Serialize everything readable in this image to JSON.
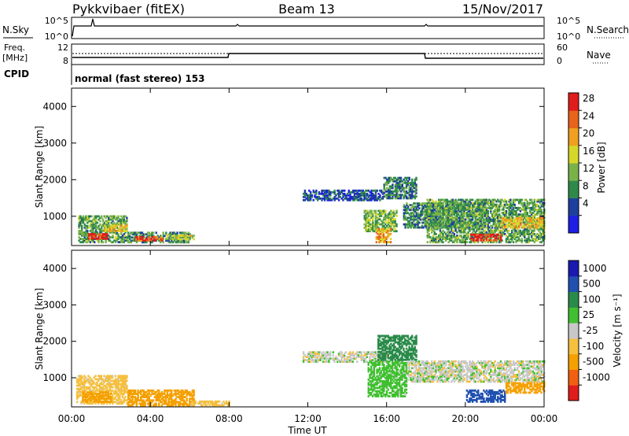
{
  "header": {
    "radar": "Pykkvibaer (fitEX)",
    "beam": "Beam 13",
    "date": "15/Nov/2017"
  },
  "status_panels": {
    "nsky": {
      "label": "N.Sky",
      "ticks": [
        "10^5",
        "10^0"
      ],
      "right_label": "N.Search",
      "right_ticks": [
        "10^5",
        "10^0"
      ]
    },
    "freq": {
      "label": "Freq.",
      "unit": "[MHz]",
      "ticks": [
        "12",
        "8"
      ],
      "right_label": "Nave",
      "right_ticks": [
        "60",
        "0"
      ]
    },
    "cpid": {
      "label": "CPID",
      "text": "normal (fast stereo) 153"
    }
  },
  "colors": {
    "power": [
      "#1e1ee6",
      "#1f3f9e",
      "#2f8a4a",
      "#7ab24a",
      "#d7d72a",
      "#f0a020",
      "#e8631c",
      "#e01c1c"
    ],
    "velocity": [
      "#e01c1c",
      "#f06010",
      "#f5a000",
      "#f5c040",
      "#c8c8c8",
      "#40c030",
      "#2a8a4a",
      "#2050b0",
      "#1a1ab0"
    ],
    "trace": "#000000"
  },
  "chart_data": [
    {
      "type": "heatmap",
      "name": "power",
      "xlabel": "",
      "ylabel": "Slant Range [km]",
      "xlim": [
        0,
        24
      ],
      "ylim": [
        200,
        4500
      ],
      "y_ticks": [
        "1000",
        "2000",
        "3000",
        "4000"
      ],
      "colorbar": {
        "label": "Power [dB]",
        "ticks": [
          "28",
          "24",
          "20",
          "16",
          "12",
          "8",
          "4"
        ],
        "range": [
          0,
          32
        ]
      },
      "regions": [
        {
          "t": [
            0.3,
            2.8
          ],
          "r": [
            300,
            1050
          ],
          "level": 12
        },
        {
          "t": [
            0.8,
            1.8
          ],
          "r": [
            400,
            560
          ],
          "level": 30
        },
        {
          "t": [
            1.6,
            2.8
          ],
          "r": [
            600,
            800
          ],
          "level": 20
        },
        {
          "t": [
            2.8,
            6.0
          ],
          "r": [
            300,
            600
          ],
          "level": 10
        },
        {
          "t": [
            3.2,
            4.6
          ],
          "r": [
            350,
            480
          ],
          "level": 26
        },
        {
          "t": [
            4.8,
            6.2
          ],
          "r": [
            380,
            520
          ],
          "level": 16
        },
        {
          "t": [
            11.7,
            15.8
          ],
          "r": [
            1450,
            1750
          ],
          "level": 6
        },
        {
          "t": [
            14.8,
            16.5
          ],
          "r": [
            600,
            1200
          ],
          "level": 14
        },
        {
          "t": [
            15.4,
            16.2
          ],
          "r": [
            300,
            700
          ],
          "level": 22
        },
        {
          "t": [
            15.8,
            17.5
          ],
          "r": [
            1500,
            2100
          ],
          "level": 9
        },
        {
          "t": [
            16.8,
            21.0
          ],
          "r": [
            700,
            1400
          ],
          "level": 10
        },
        {
          "t": [
            18.0,
            24.0
          ],
          "r": [
            300,
            1500
          ],
          "level": 12
        },
        {
          "t": [
            20.2,
            21.8
          ],
          "r": [
            350,
            550
          ],
          "level": 30
        },
        {
          "t": [
            21.8,
            24.0
          ],
          "r": [
            700,
            1000
          ],
          "level": 20
        }
      ]
    },
    {
      "type": "heatmap",
      "name": "velocity",
      "xlabel": "Time UT",
      "ylabel": "Slant Range [km]",
      "xlim": [
        0,
        24
      ],
      "ylim": [
        200,
        4500
      ],
      "x_ticks": [
        "00:00",
        "04:00",
        "08:00",
        "12:00",
        "16:00",
        "20:00",
        "00:00"
      ],
      "y_ticks": [
        "1000",
        "2000",
        "3000",
        "4000"
      ],
      "colorbar": {
        "label": "Velocity [m s⁻¹]",
        "ticks": [
          "1000",
          "500",
          "100",
          "25",
          "-25",
          "-100",
          "-500",
          "-1000"
        ]
      },
      "regions": [
        {
          "t": [
            0.2,
            2.8
          ],
          "r": [
            300,
            1100
          ],
          "level": -60
        },
        {
          "t": [
            0.5,
            2.0
          ],
          "r": [
            350,
            650
          ],
          "level": -300
        },
        {
          "t": [
            2.8,
            6.2
          ],
          "r": [
            250,
            700
          ],
          "level": -150
        },
        {
          "t": [
            6.0,
            8.0
          ],
          "r": [
            250,
            400
          ],
          "level": -60
        },
        {
          "t": [
            11.7,
            16.0
          ],
          "r": [
            1450,
            1750
          ],
          "level": 0
        },
        {
          "t": [
            15.0,
            17.0
          ],
          "r": [
            500,
            1500
          ],
          "level": 60
        },
        {
          "t": [
            15.5,
            17.5
          ],
          "r": [
            1500,
            2200
          ],
          "level": 200
        },
        {
          "t": [
            17.0,
            24.0
          ],
          "r": [
            900,
            1500
          ],
          "level": 0
        },
        {
          "t": [
            20.0,
            22.0
          ],
          "r": [
            350,
            700
          ],
          "level": 800
        },
        {
          "t": [
            22.0,
            24.0
          ],
          "r": [
            600,
            900
          ],
          "level": -150
        }
      ]
    }
  ]
}
